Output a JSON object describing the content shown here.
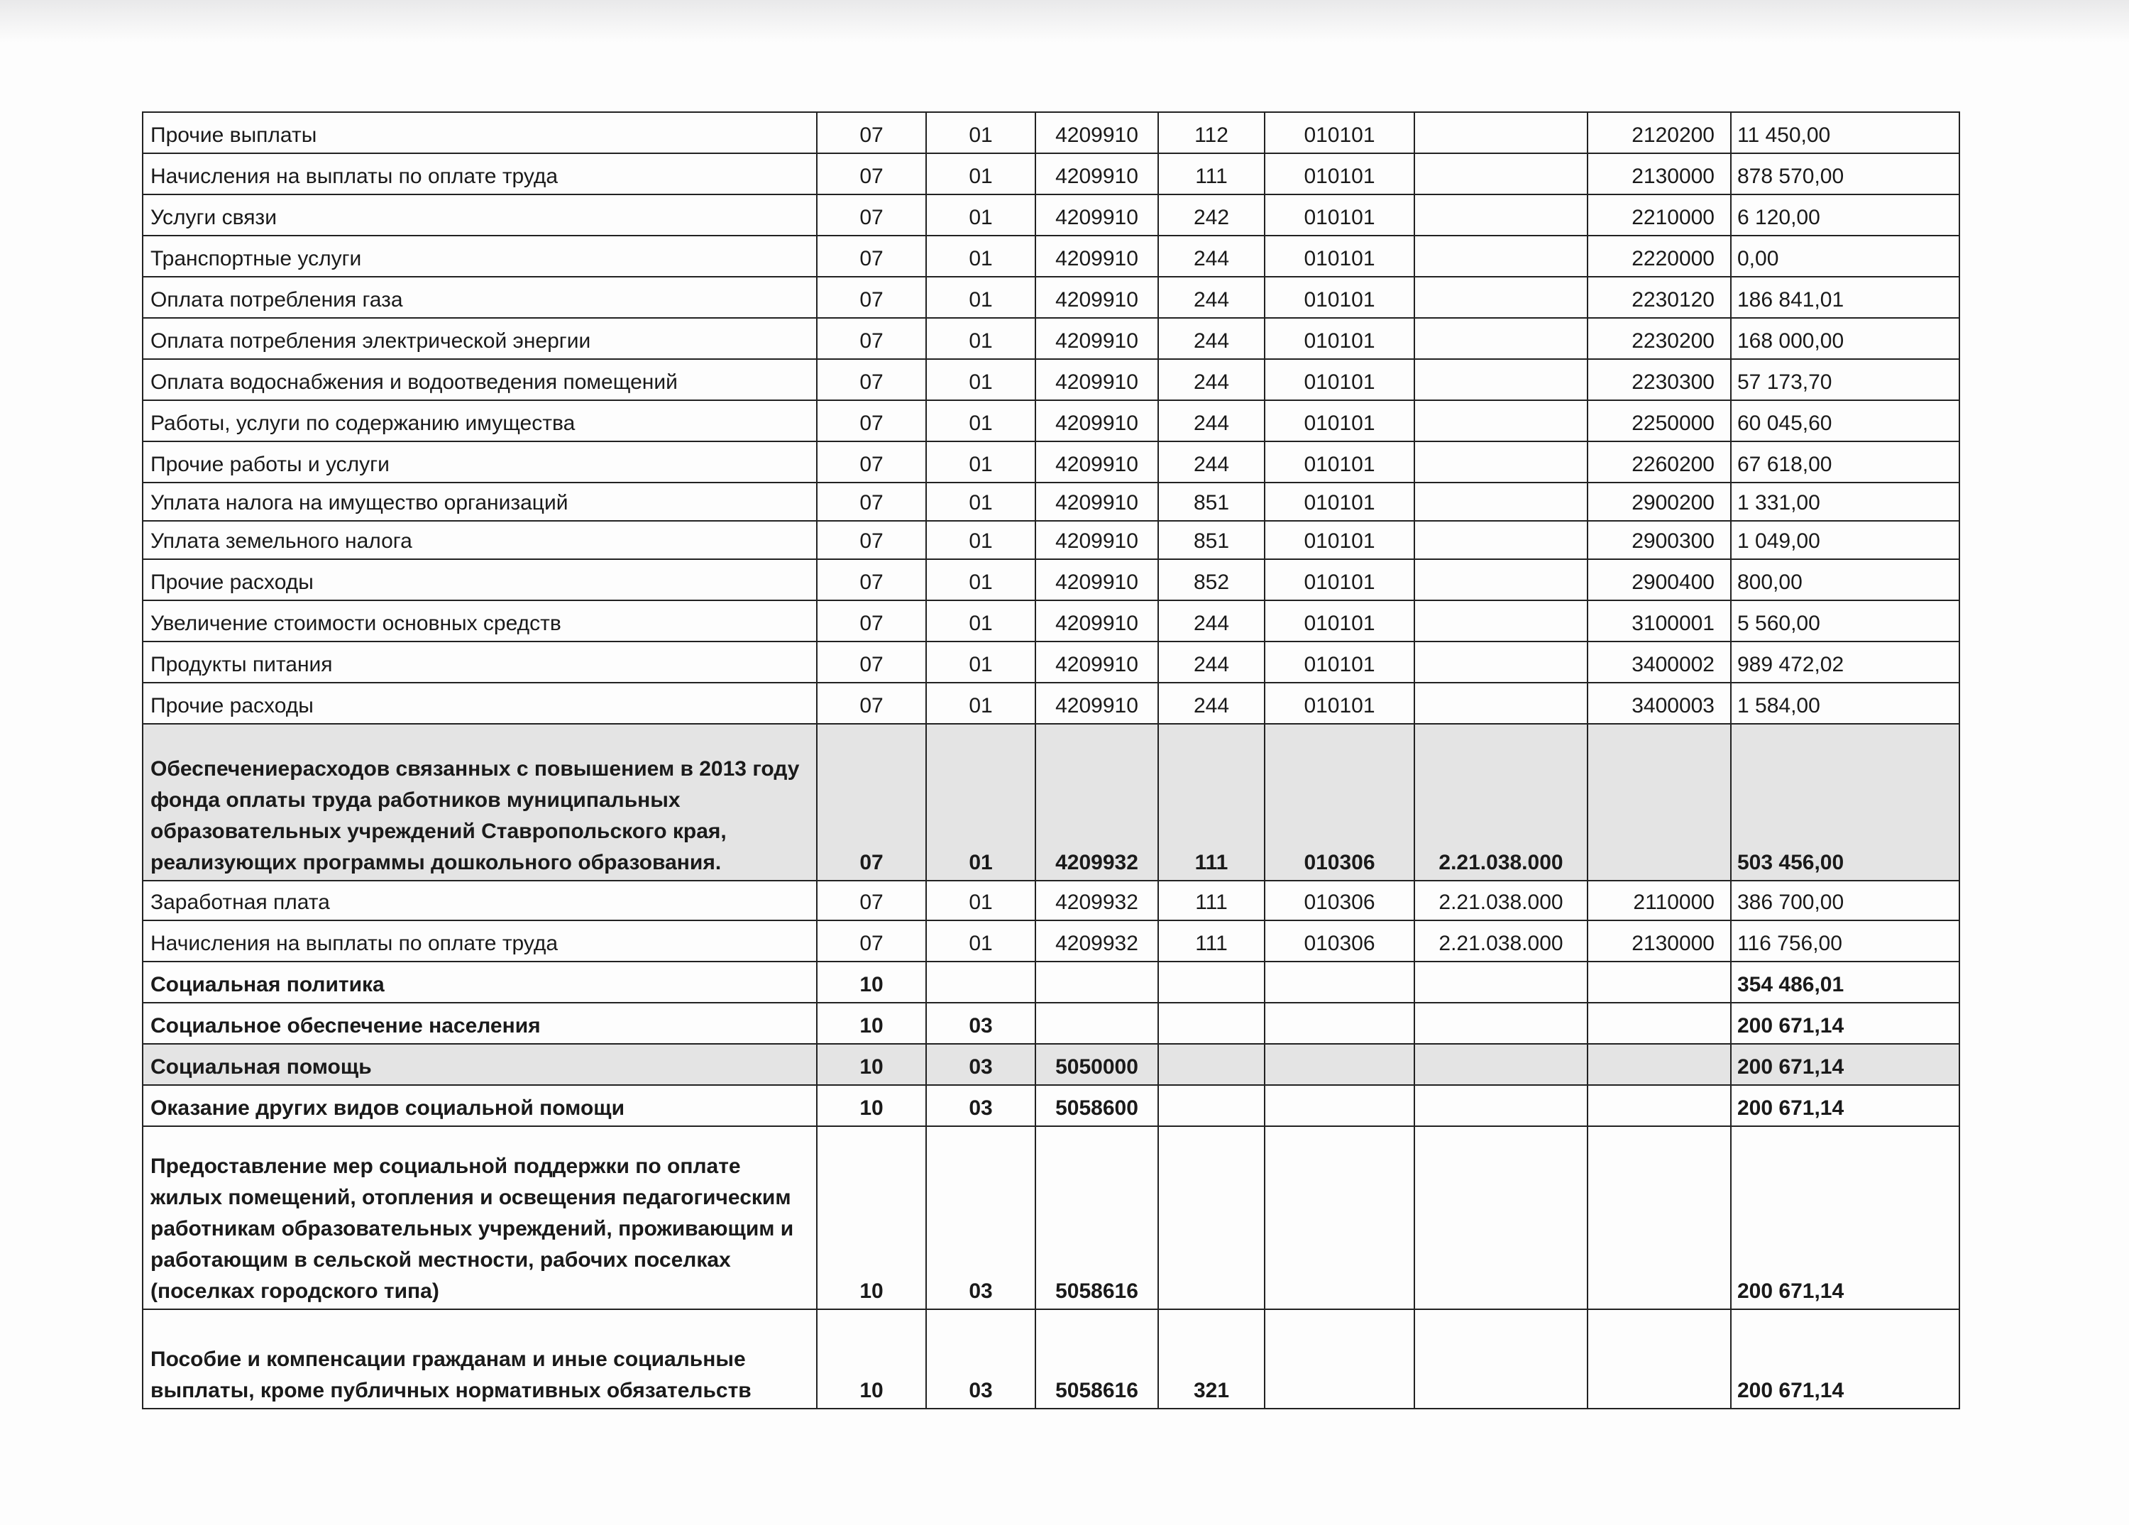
{
  "rows": [
    {
      "name": "Прочие выплаты",
      "rz": "07",
      "pr": "01",
      "csr": "4209910",
      "vr": "112",
      "kosgu": "010101",
      "code": "",
      "ek": "2120200",
      "sum": "11 450,00"
    },
    {
      "name": "Начисления на выплаты по оплате труда",
      "rz": "07",
      "pr": "01",
      "csr": "4209910",
      "vr": "111",
      "kosgu": "010101",
      "code": "",
      "ek": "2130000",
      "sum": "878 570,00"
    },
    {
      "name": "Услуги связи",
      "rz": "07",
      "pr": "01",
      "csr": "4209910",
      "vr": "242",
      "kosgu": "010101",
      "code": "",
      "ek": "2210000",
      "sum": "6 120,00"
    },
    {
      "name": "Транспортные услуги",
      "rz": "07",
      "pr": "01",
      "csr": "4209910",
      "vr": "244",
      "kosgu": "010101",
      "code": "",
      "ek": "2220000",
      "sum": "0,00"
    },
    {
      "name": "Оплата потребления газа",
      "rz": "07",
      "pr": "01",
      "csr": "4209910",
      "vr": "244",
      "kosgu": "010101",
      "code": "",
      "ek": "2230120",
      "sum": "186 841,01"
    },
    {
      "name": "Оплата потребления электрической энергии",
      "rz": "07",
      "pr": "01",
      "csr": "4209910",
      "vr": "244",
      "kosgu": "010101",
      "code": "",
      "ek": "2230200",
      "sum": "168 000,00"
    },
    {
      "name": "Оплата водоснабжения и водоотведения помещений",
      "rz": "07",
      "pr": "01",
      "csr": "4209910",
      "vr": "244",
      "kosgu": "010101",
      "code": "",
      "ek": "2230300",
      "sum": "57 173,70"
    },
    {
      "name": "Работы, услуги по содержанию имущества",
      "rz": "07",
      "pr": "01",
      "csr": "4209910",
      "vr": "244",
      "kosgu": "010101",
      "code": "",
      "ek": "2250000",
      "sum": "60 045,60"
    },
    {
      "name": "Прочие работы и услуги",
      "rz": "07",
      "pr": "01",
      "csr": "4209910",
      "vr": "244",
      "kosgu": "010101",
      "code": "",
      "ek": "2260200",
      "sum": "67 618,00"
    },
    {
      "name": "Уплата налога на имущество организаций",
      "rz": "07",
      "pr": "01",
      "csr": "4209910",
      "vr": "851",
      "kosgu": "010101",
      "code": "",
      "ek": "2900200",
      "sum": "1 331,00"
    },
    {
      "name": "Уплата земельного налога",
      "rz": "07",
      "pr": "01",
      "csr": "4209910",
      "vr": "851",
      "kosgu": "010101",
      "code": "",
      "ek": "2900300",
      "sum": "1 049,00"
    },
    {
      "name": "Прочие расходы",
      "rz": "07",
      "pr": "01",
      "csr": "4209910",
      "vr": "852",
      "kosgu": "010101",
      "code": "",
      "ek": "2900400",
      "sum": "800,00"
    },
    {
      "name": "Увеличение стоимости основных средств",
      "rz": "07",
      "pr": "01",
      "csr": "4209910",
      "vr": "244",
      "kosgu": "010101",
      "code": "",
      "ek": "3100001",
      "sum": "5 560,00"
    },
    {
      "name": "Продукты питания",
      "rz": "07",
      "pr": "01",
      "csr": "4209910",
      "vr": "244",
      "kosgu": "010101",
      "code": "",
      "ek": "3400002",
      "sum": "989 472,02"
    },
    {
      "name": "Прочие расходы",
      "rz": "07",
      "pr": "01",
      "csr": "4209910",
      "vr": "244",
      "kosgu": "010101",
      "code": "",
      "ek": "3400003",
      "sum": "1 584,00"
    },
    {
      "name": "Обеспечениерасходов связанных с повышением в 2013 году фонда оплаты труда работников муниципальных образовательных учреждений Ставропольского края, реализующих программы дошкольного образования.",
      "rz": "07",
      "pr": "01",
      "csr": "4209932",
      "vr": "111",
      "kosgu": "010306",
      "code": "2.21.038.000",
      "ek": "",
      "sum": "503 456,00"
    },
    {
      "name": "Заработная плата",
      "rz": "07",
      "pr": "01",
      "csr": "4209932",
      "vr": "111",
      "kosgu": "010306",
      "code": "2.21.038.000",
      "ek": "2110000",
      "sum": "386 700,00"
    },
    {
      "name": "Начисления на выплаты по оплате труда",
      "rz": "07",
      "pr": "01",
      "csr": "4209932",
      "vr": "111",
      "kosgu": "010306",
      "code": "2.21.038.000",
      "ek": "2130000",
      "sum": "116 756,00"
    },
    {
      "name": "Социальная политика",
      "rz": "10",
      "pr": "",
      "csr": "",
      "vr": "",
      "kosgu": "",
      "code": "",
      "ek": "",
      "sum": "354 486,01"
    },
    {
      "name": "Социальное обеспечение населения",
      "rz": "10",
      "pr": "03",
      "csr": "",
      "vr": "",
      "kosgu": "",
      "code": "",
      "ek": "",
      "sum": "200 671,14"
    },
    {
      "name": "Социальная помощь",
      "rz": "10",
      "pr": "03",
      "csr": "5050000",
      "vr": "",
      "kosgu": "",
      "code": "",
      "ek": "",
      "sum": "200 671,14"
    },
    {
      "name": "Оказание других видов социальной помощи",
      "rz": "10",
      "pr": "03",
      "csr": "5058600",
      "vr": "",
      "kosgu": "",
      "code": "",
      "ek": "",
      "sum": "200 671,14"
    },
    {
      "name": "Предоставление мер социальной поддержки по оплате жилых помещений, отопления и освещения педагогическим работникам образовательных учреждений, проживающим и работающим в сельской местности,  рабочих поселках (поселках городского типа)",
      "rz": "10",
      "pr": "03",
      "csr": "5058616",
      "vr": "",
      "kosgu": "",
      "code": "",
      "ek": "",
      "sum": "200 671,14"
    },
    {
      "name": "Пособие и компенсации гражданам и иные социальные выплаты, кроме публичных нормативных обязательств",
      "rz": "10",
      "pr": "03",
      "csr": "5058616",
      "vr": "321",
      "kosgu": "",
      "code": "",
      "ek": "",
      "sum": "200 671,14"
    }
  ]
}
